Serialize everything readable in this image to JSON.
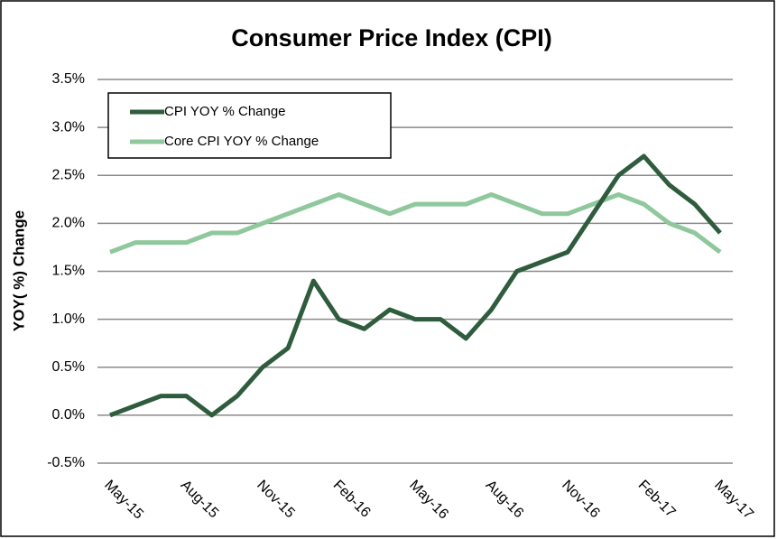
{
  "chart_data": {
    "type": "line",
    "title": "Consumer Price Index (CPI)",
    "y_label": "YOY( %) Change",
    "categories": [
      "May-15",
      null,
      null,
      "Aug-15",
      null,
      null,
      "Nov-15",
      null,
      null,
      "Feb-16",
      null,
      null,
      "May-16",
      null,
      null,
      "Aug-16",
      null,
      null,
      "Nov-16",
      null,
      null,
      "Feb-17",
      null,
      null,
      "May-17"
    ],
    "series": [
      {
        "name": "CPI YOY % Change",
        "color": "#2e5c3c",
        "values": [
          0.0,
          0.1,
          0.2,
          0.2,
          0.0,
          0.2,
          0.5,
          0.7,
          1.4,
          1.0,
          0.9,
          1.1,
          1.0,
          1.0,
          0.8,
          1.1,
          1.5,
          1.6,
          1.7,
          2.1,
          2.5,
          2.7,
          2.4,
          2.2,
          1.9
        ]
      },
      {
        "name": "Core CPI YOY % Change",
        "color": "#8fc89c",
        "values": [
          1.7,
          1.8,
          1.8,
          1.8,
          1.9,
          1.9,
          2.0,
          2.1,
          2.2,
          2.3,
          2.2,
          2.1,
          2.2,
          2.2,
          2.2,
          2.3,
          2.2,
          2.1,
          2.1,
          2.2,
          2.3,
          2.2,
          2.0,
          1.9,
          1.7
        ]
      }
    ],
    "ylim": [
      -0.5,
      3.5
    ],
    "yticks": [
      {
        "value": -0.5,
        "label": "-0.5%"
      },
      {
        "value": 0.0,
        "label": "0.0%"
      },
      {
        "value": 0.5,
        "label": "0.5%"
      },
      {
        "value": 1.0,
        "label": "1.0%"
      },
      {
        "value": 1.5,
        "label": "1.5%"
      },
      {
        "value": 2.0,
        "label": "2.0%"
      },
      {
        "value": 2.5,
        "label": "2.5%"
      },
      {
        "value": 3.0,
        "label": "3.0%"
      },
      {
        "value": 3.5,
        "label": "3.5%"
      }
    ],
    "grid": true,
    "legend": "upper left"
  }
}
